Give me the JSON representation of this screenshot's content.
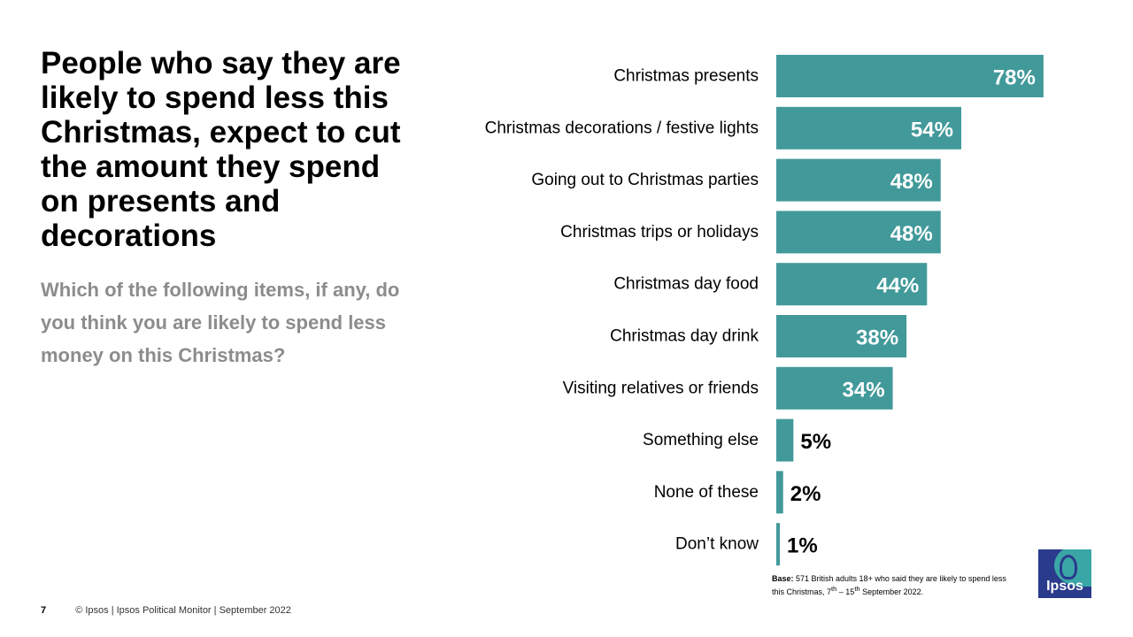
{
  "title": "People who say they are likely to spend less this Christmas, expect to cut the amount they spend on presents and decorations",
  "subtitle": "Which of the following items, if any, do you think you are likely to spend less money on this Christmas?",
  "base_note": {
    "label": "Base:",
    "text_part1": " 571 British adults 18+  who said they are likely to spend less this Christmas, 7",
    "sup1": "th",
    "text_part2": " – 15",
    "sup2": "th",
    "text_part3": " September 2022."
  },
  "footer": {
    "page_number": "7",
    "text": "© Ipsos | Ipsos  Political Monitor | September 2022"
  },
  "logo": {
    "text": "Ipsos"
  },
  "colors": {
    "bar": "#42999a",
    "title": "#000000",
    "subtitle": "#8c8c8c"
  },
  "chart_data": {
    "type": "bar",
    "orientation": "horizontal",
    "categories": [
      "Christmas presents",
      "Christmas decorations / festive lights",
      "Going out to Christmas parties",
      "Christmas trips or holidays",
      "Christmas day food",
      "Christmas day drink",
      "Visiting relatives or friends",
      "Something else",
      "None of these",
      "Don’t know"
    ],
    "values": [
      78,
      54,
      48,
      48,
      44,
      38,
      34,
      5,
      2,
      1
    ],
    "labels": [
      "78%",
      "54%",
      "48%",
      "48%",
      "44%",
      "38%",
      "34%",
      "5%",
      "2%",
      "1%"
    ],
    "unit": "%",
    "xlim": [
      0,
      100
    ],
    "grid": false,
    "legend": "none"
  }
}
